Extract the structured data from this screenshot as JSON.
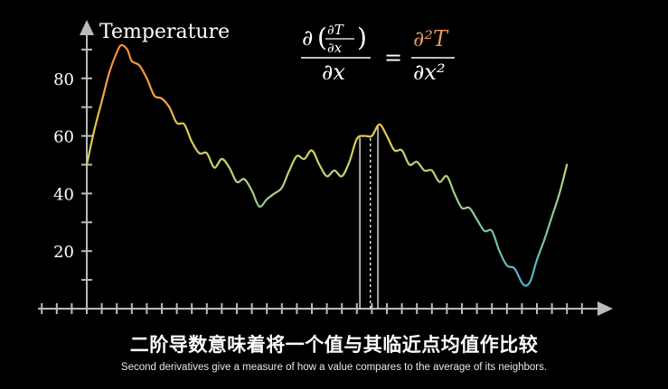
{
  "chart_data": {
    "type": "line",
    "ylabel": "Temperature",
    "yticks": [
      20,
      40,
      60,
      80
    ],
    "ylim": [
      0,
      95
    ],
    "xlim": [
      0,
      33
    ],
    "x_tick_count": 33,
    "grid": false,
    "points": [
      [
        0.0,
        50
      ],
      [
        0.5,
        62
      ],
      [
        1.0,
        72
      ],
      [
        1.5,
        82
      ],
      [
        2.0,
        89
      ],
      [
        2.3,
        91.5
      ],
      [
        2.7,
        90
      ],
      [
        3.0,
        86
      ],
      [
        3.5,
        84.5
      ],
      [
        4.0,
        80
      ],
      [
        4.5,
        74
      ],
      [
        5.0,
        73
      ],
      [
        5.5,
        70
      ],
      [
        6.0,
        64.5
      ],
      [
        6.5,
        64
      ],
      [
        7.0,
        58
      ],
      [
        7.5,
        54
      ],
      [
        8.0,
        54
      ],
      [
        8.5,
        49
      ],
      [
        9.0,
        52
      ],
      [
        9.5,
        49
      ],
      [
        10.0,
        44
      ],
      [
        10.5,
        45
      ],
      [
        11.0,
        41
      ],
      [
        11.5,
        35.5
      ],
      [
        12.0,
        38
      ],
      [
        12.5,
        40
      ],
      [
        13.0,
        42
      ],
      [
        13.5,
        48
      ],
      [
        14.0,
        53
      ],
      [
        14.5,
        52
      ],
      [
        15.0,
        55
      ],
      [
        15.5,
        50
      ],
      [
        16.0,
        46
      ],
      [
        16.5,
        48
      ],
      [
        17.0,
        46
      ],
      [
        17.5,
        51
      ],
      [
        18.0,
        59
      ],
      [
        18.5,
        60
      ],
      [
        19.0,
        60
      ],
      [
        19.5,
        64
      ],
      [
        20.0,
        60
      ],
      [
        20.5,
        55
      ],
      [
        21.0,
        55
      ],
      [
        21.5,
        50
      ],
      [
        22.0,
        51
      ],
      [
        22.5,
        48
      ],
      [
        23.0,
        48
      ],
      [
        23.5,
        44
      ],
      [
        24.0,
        46
      ],
      [
        24.5,
        40
      ],
      [
        25.0,
        35
      ],
      [
        25.5,
        35
      ],
      [
        26.0,
        31
      ],
      [
        26.5,
        27
      ],
      [
        27.0,
        27
      ],
      [
        27.5,
        20
      ],
      [
        28.0,
        15
      ],
      [
        28.5,
        14
      ],
      [
        29.0,
        9
      ],
      [
        29.3,
        8
      ],
      [
        29.6,
        10
      ],
      [
        30.0,
        17
      ],
      [
        30.5,
        24
      ],
      [
        31.0,
        32
      ],
      [
        31.5,
        40
      ],
      [
        32.0,
        50
      ]
    ],
    "markers": [
      18.2,
      18.9,
      19.4
    ]
  },
  "equation": {
    "lhs_num": "∂",
    "lhs_frac_num": "∂T",
    "lhs_frac_den": "∂x",
    "lhs_den": "∂x",
    "equals": "=",
    "rhs_num": "∂²T",
    "rhs_den": "∂x²"
  },
  "colors": {
    "axis": "#bbbbbb",
    "text": "#ffffff",
    "rhs_accent": "#e8955a",
    "curve_hot": "#f4a23c",
    "curve_warm": "#f0d04a",
    "curve_mid": "#9ad07a",
    "curve_cool": "#58b8c8"
  },
  "subtitles": {
    "chinese": "二阶导数意味着将一个值与其临近点均值作比较",
    "english": "Second derivatives give a measure of how a value compares to the average of its neighbors."
  }
}
